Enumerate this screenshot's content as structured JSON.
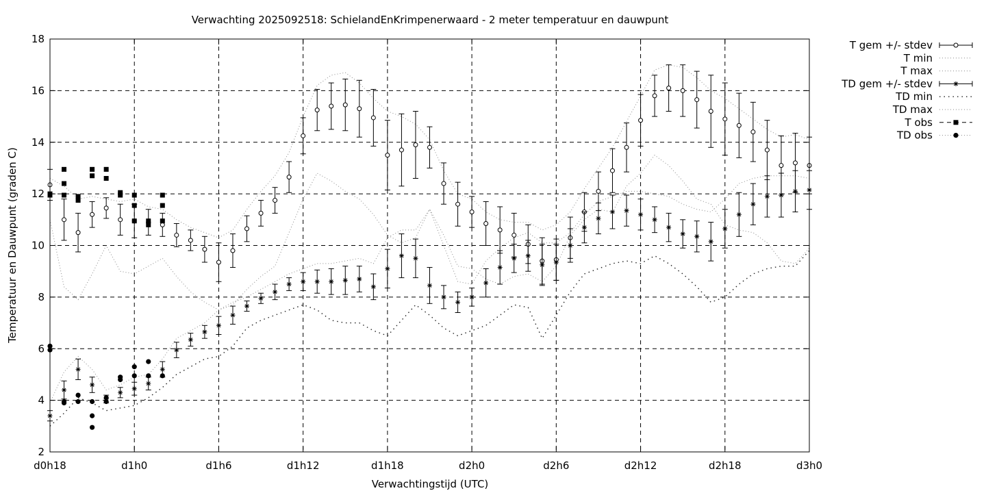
{
  "chart_data": {
    "type": "line",
    "title": "Verwachting 2025092518: SchielandEnKrimpenerwaard - 2 meter temperatuur en dauwpunt",
    "xlabel": "Verwachtingstijd (UTC)",
    "ylabel": "Temperatuur en Dauwpunt (graden C)",
    "xlim": [
      18,
      72
    ],
    "ylim": [
      2,
      18
    ],
    "grid": true,
    "legend_position": "outside-right",
    "x_ticks": [
      {
        "x": 18,
        "label": "d0h18"
      },
      {
        "x": 24,
        "label": "d1h0"
      },
      {
        "x": 30,
        "label": "d1h6"
      },
      {
        "x": 36,
        "label": "d1h12"
      },
      {
        "x": 42,
        "label": "d1h18"
      },
      {
        "x": 48,
        "label": "d2h0"
      },
      {
        "x": 54,
        "label": "d2h6"
      },
      {
        "x": 60,
        "label": "d2h12"
      },
      {
        "x": 66,
        "label": "d2h18"
      },
      {
        "x": 72,
        "label": "d3h0"
      }
    ],
    "y_ticks": [
      2,
      4,
      6,
      8,
      10,
      12,
      14,
      16,
      18
    ],
    "legend": [
      {
        "label": "T gem +/- stdev",
        "symbol": "circle",
        "line": "solid",
        "errorbar": true
      },
      {
        "label": "T min",
        "symbol": "none",
        "line": "dotted"
      },
      {
        "label": "T max",
        "symbol": "none",
        "line": "dotted"
      },
      {
        "label": "TD gem +/- stdev",
        "symbol": "star",
        "line": "solid",
        "errorbar": true
      },
      {
        "label": "TD min",
        "symbol": "none",
        "line": "sparse-dotted"
      },
      {
        "label": "TD max",
        "symbol": "none",
        "line": "dotted"
      },
      {
        "label": "T obs",
        "symbol": "square",
        "line": "dashed"
      },
      {
        "label": "TD obs",
        "symbol": "dot",
        "line": "dotted"
      }
    ],
    "x": [
      18,
      19,
      20,
      21,
      22,
      23,
      24,
      25,
      26,
      27,
      28,
      29,
      30,
      31,
      32,
      33,
      34,
      35,
      36,
      37,
      38,
      39,
      40,
      41,
      42,
      43,
      44,
      45,
      46,
      47,
      48,
      49,
      50,
      51,
      52,
      53,
      54,
      55,
      56,
      57,
      58,
      59,
      60,
      61,
      62,
      63,
      64,
      65,
      66,
      67,
      68,
      69,
      70,
      71,
      72
    ],
    "series": [
      {
        "name": "T gem +/- stdev",
        "values": [
          12.35,
          11.0,
          10.5,
          11.2,
          11.45,
          11.0,
          10.95,
          10.9,
          10.8,
          10.4,
          10.2,
          9.85,
          9.35,
          9.8,
          10.65,
          11.25,
          11.75,
          12.65,
          14.25,
          15.25,
          15.4,
          15.45,
          15.3,
          14.95,
          13.5,
          13.7,
          13.9,
          13.8,
          12.4,
          11.6,
          11.3,
          10.85,
          10.6,
          10.4,
          10.05,
          9.4,
          9.45,
          10.3,
          11.3,
          12.1,
          12.9,
          13.8,
          14.85,
          15.8,
          16.1,
          16.0,
          15.65,
          15.2,
          14.9,
          14.65,
          14.4,
          13.7,
          13.1,
          13.2,
          13.1
        ],
        "stdev": [
          0.6,
          0.8,
          0.75,
          0.5,
          0.4,
          0.6,
          0.65,
          0.5,
          0.45,
          0.45,
          0.4,
          0.5,
          0.75,
          0.65,
          0.5,
          0.5,
          0.5,
          0.6,
          0.7,
          0.8,
          0.9,
          1.0,
          1.1,
          1.1,
          1.35,
          1.4,
          1.3,
          0.8,
          0.8,
          0.85,
          0.6,
          0.85,
          0.9,
          0.85,
          0.75,
          0.9,
          0.8,
          0.8,
          0.75,
          0.75,
          0.85,
          0.95,
          1.0,
          0.8,
          0.9,
          1.0,
          1.1,
          1.4,
          1.4,
          1.25,
          1.15,
          1.15,
          1.15,
          1.15,
          1.1
        ]
      },
      {
        "name": "T min",
        "values": [
          11.0,
          8.4,
          7.9,
          8.9,
          10.0,
          9.0,
          8.9,
          9.2,
          9.5,
          8.8,
          8.2,
          7.8,
          7.5,
          7.7,
          8.3,
          8.8,
          9.2,
          10.5,
          11.8,
          12.8,
          12.5,
          12.1,
          11.8,
          11.2,
          10.4,
          10.1,
          10.3,
          11.4,
          10.4,
          9.2,
          9.1,
          8.7,
          8.5,
          8.8,
          8.9,
          8.6,
          9.2,
          10.4,
          11.0,
          11.4,
          11.3,
          12.3,
          12.8,
          13.5,
          13.1,
          12.5,
          11.8,
          11.6,
          10.8,
          10.6,
          10.5,
          10.1,
          9.4,
          9.3,
          9.9
        ]
      },
      {
        "name": "T max",
        "values": [
          12.6,
          12.3,
          11.8,
          11.9,
          11.8,
          11.7,
          11.8,
          11.5,
          11.4,
          11.0,
          10.7,
          10.5,
          10.3,
          10.6,
          11.4,
          12.1,
          12.7,
          13.6,
          15.0,
          16.2,
          16.6,
          16.7,
          16.3,
          15.7,
          15.2,
          15.0,
          14.7,
          14.1,
          12.9,
          12.0,
          11.8,
          11.3,
          11.0,
          10.9,
          10.9,
          10.6,
          10.8,
          11.3,
          12.2,
          13.0,
          13.8,
          14.8,
          15.8,
          16.8,
          17.0,
          16.9,
          16.5,
          16.0,
          15.7,
          15.3,
          14.9,
          14.5,
          14.2,
          14.3,
          14.1
        ]
      },
      {
        "name": "TD gem +/- stdev",
        "values": [
          3.4,
          4.4,
          5.2,
          4.6,
          4.05,
          4.3,
          4.45,
          4.65,
          5.2,
          5.95,
          6.35,
          6.65,
          6.9,
          7.3,
          7.65,
          7.95,
          8.2,
          8.5,
          8.6,
          8.6,
          8.6,
          8.65,
          8.7,
          8.4,
          9.1,
          9.6,
          9.5,
          8.45,
          8.0,
          7.8,
          8.0,
          8.55,
          9.15,
          9.5,
          9.6,
          9.25,
          9.35,
          10.0,
          10.7,
          11.05,
          11.3,
          11.35,
          11.2,
          11.0,
          10.7,
          10.45,
          10.35,
          10.15,
          10.65,
          11.2,
          11.6,
          11.9,
          11.95,
          12.1,
          12.15
        ],
        "stdev": [
          0.2,
          0.35,
          0.4,
          0.3,
          0.15,
          0.2,
          0.25,
          0.25,
          0.3,
          0.3,
          0.25,
          0.25,
          0.35,
          0.35,
          0.2,
          0.2,
          0.3,
          0.25,
          0.35,
          0.45,
          0.5,
          0.55,
          0.5,
          0.5,
          0.75,
          0.85,
          0.75,
          0.7,
          0.45,
          0.4,
          0.35,
          0.55,
          0.65,
          0.55,
          0.6,
          0.8,
          0.7,
          0.65,
          0.6,
          0.6,
          0.65,
          0.6,
          0.6,
          0.5,
          0.55,
          0.55,
          0.6,
          0.75,
          0.75,
          0.85,
          0.8,
          0.8,
          0.85,
          0.8,
          0.75
        ]
      },
      {
        "name": "TD min",
        "values": [
          3.0,
          3.5,
          4.1,
          3.9,
          3.6,
          3.7,
          3.8,
          4.1,
          4.5,
          5.0,
          5.3,
          5.6,
          5.7,
          6.1,
          6.8,
          7.1,
          7.3,
          7.5,
          7.7,
          7.5,
          7.1,
          7.0,
          7.0,
          6.7,
          6.5,
          7.1,
          7.7,
          7.3,
          6.8,
          6.5,
          6.7,
          6.9,
          7.3,
          7.7,
          7.6,
          6.4,
          7.3,
          8.2,
          8.9,
          9.1,
          9.3,
          9.4,
          9.3,
          9.6,
          9.3,
          8.9,
          8.4,
          7.8,
          8.0,
          8.5,
          8.9,
          9.1,
          9.2,
          9.2,
          9.8
        ]
      },
      {
        "name": "TD max",
        "values": [
          3.9,
          5.1,
          5.7,
          5.2,
          4.4,
          4.6,
          4.9,
          5.0,
          5.6,
          6.4,
          6.7,
          7.0,
          7.5,
          7.8,
          8.0,
          8.3,
          8.6,
          8.9,
          9.1,
          9.3,
          9.3,
          9.4,
          9.5,
          9.3,
          10.3,
          10.6,
          10.6,
          11.4,
          10.0,
          8.6,
          8.5,
          9.4,
          9.9,
          10.3,
          10.5,
          10.1,
          10.1,
          10.5,
          11.2,
          11.7,
          11.9,
          12.1,
          12.1,
          12.0,
          11.9,
          11.6,
          11.4,
          11.3,
          11.8,
          12.4,
          12.6,
          12.7,
          12.7,
          12.7,
          12.6
        ]
      },
      {
        "name": "T obs",
        "points": [
          [
            18,
            11.95
          ],
          [
            18,
            12.0
          ],
          [
            19,
            12.95
          ],
          [
            19,
            12.4
          ],
          [
            19,
            11.95
          ],
          [
            20,
            11.9
          ],
          [
            20,
            11.75
          ],
          [
            21,
            12.95
          ],
          [
            21,
            12.7
          ],
          [
            22,
            12.95
          ],
          [
            22,
            12.6
          ],
          [
            23,
            12.05
          ],
          [
            23,
            11.95
          ],
          [
            24,
            11.95
          ],
          [
            24,
            11.55
          ],
          [
            24,
            10.95
          ],
          [
            25,
            10.95
          ],
          [
            25,
            10.8
          ],
          [
            26,
            11.95
          ],
          [
            26,
            11.55
          ],
          [
            26,
            10.95
          ]
        ]
      },
      {
        "name": "TD obs",
        "points": [
          [
            18,
            6.1
          ],
          [
            18,
            5.95
          ],
          [
            19,
            3.95
          ],
          [
            19,
            3.9
          ],
          [
            20,
            4.2
          ],
          [
            20,
            3.95
          ],
          [
            21,
            3.95
          ],
          [
            21,
            3.4
          ],
          [
            21,
            2.95
          ],
          [
            22,
            4.1
          ],
          [
            22,
            3.95
          ],
          [
            23,
            4.9
          ],
          [
            23,
            4.8
          ],
          [
            24,
            5.3
          ],
          [
            24,
            4.95
          ],
          [
            25,
            5.5
          ],
          [
            25,
            4.95
          ],
          [
            26,
            4.95
          ]
        ]
      }
    ]
  }
}
